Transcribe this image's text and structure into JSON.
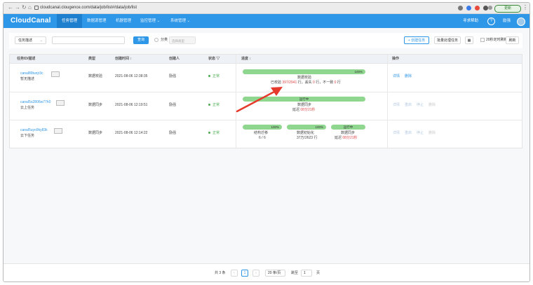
{
  "browser": {
    "url": "cloudcanal.clougence.com/data/job/list#/data/job/list",
    "update_label": "更新",
    "nav_icons": [
      "back-icon",
      "forward-icon",
      "reload-icon",
      "home-icon"
    ],
    "extension_colors": [
      "#777777",
      "#3b7be8",
      "#e84a3b",
      "#555555",
      "#999999"
    ]
  },
  "app": {
    "logo": "CloudCanal",
    "nav": [
      {
        "label": "任务管理",
        "active": true
      },
      {
        "label": "数据源管理"
      },
      {
        "label": "机器管理"
      },
      {
        "label": "监控管理 ⌄"
      },
      {
        "label": "系统管理 ⌄"
      }
    ],
    "find_help": "寻求帮助",
    "help_icon": "?",
    "username": "励强",
    "colors": {
      "primary": "#2f97e8",
      "success": "#4caf50",
      "progress": "#8fd68f",
      "alert": "#e04646"
    }
  },
  "toolbar": {
    "filter_select": "任务描述",
    "query_button": "查询",
    "category_label": "分类",
    "category_placeholder": "选择类型",
    "create_button": "+ 创建任务",
    "batch_button": "批量处理任务",
    "auto_refresh_label": "20秒定时刷新",
    "refresh_button": "刷新"
  },
  "table": {
    "headers": [
      "任务ID/描述",
      "类型",
      "创建时间 ↕",
      "创建人",
      "状态 ▽",
      "进度 ↕",
      "操作"
    ],
    "rows": [
      {
        "id": "canal89tunjr3c",
        "desc": "暂无描述",
        "type": "数据校验",
        "created": "2021-08-06 12:38:35",
        "creator": "励强",
        "status": "正常",
        "progress": [
          {
            "label": "100%",
            "fraction": 1.0
          }
        ],
        "stage": "数据校验",
        "detail_parts": [
          "已校验 ",
          "397/2941",
          " 行，丢失 ",
          "0",
          " 行，不一致 ",
          "0",
          " 行"
        ],
        "ops": [
          {
            "label": "详情",
            "kind": "active"
          },
          {
            "label": "删除",
            "kind": "active"
          }
        ]
      },
      {
        "id": "canal5o2806w77h0",
        "desc": "云上任务",
        "type": "数据同步",
        "created": "2021-08-06 12:19:51",
        "creator": "励强",
        "status": "正常",
        "progress": [
          {
            "label": "运行中",
            "fraction": 1.0
          }
        ],
        "stage": "数据同步",
        "detail_prefix": "延迟 ",
        "detail_value": "08分21秒",
        "ops": [
          {
            "label": "详情",
            "kind": "muted"
          },
          {
            "label": "重启",
            "kind": "muted"
          },
          {
            "label": "停止",
            "kind": "muted"
          },
          {
            "label": "删除",
            "kind": "gray"
          }
        ]
      },
      {
        "id": "canal5uyo9ky83k",
        "desc": "云下任务",
        "type": "数据同步",
        "created": "2021-08-06 12:14:22",
        "creator": "励强",
        "status": "正常",
        "progress": [
          {
            "label": "100%",
            "stage": "结构迁移",
            "detail": "6 / 6"
          },
          {
            "label": "100%",
            "stage": "数据初始化",
            "detail": "37万/2623 行"
          },
          {
            "label": "运行中",
            "stage": "数据同步",
            "detail_prefix": "延迟 ",
            "detail_value": "08分21秒"
          }
        ],
        "ops": [
          {
            "label": "详情",
            "kind": "muted"
          },
          {
            "label": "重启",
            "kind": "muted"
          },
          {
            "label": "停止",
            "kind": "muted"
          },
          {
            "label": "删除",
            "kind": "gray"
          }
        ]
      }
    ]
  },
  "pagination": {
    "total": "共 3 条",
    "prev": "‹",
    "current_page": "1",
    "next": "›",
    "page_size": "20 条/页",
    "goto_label": "跳至",
    "goto_value": "1",
    "page_suffix": "页"
  }
}
